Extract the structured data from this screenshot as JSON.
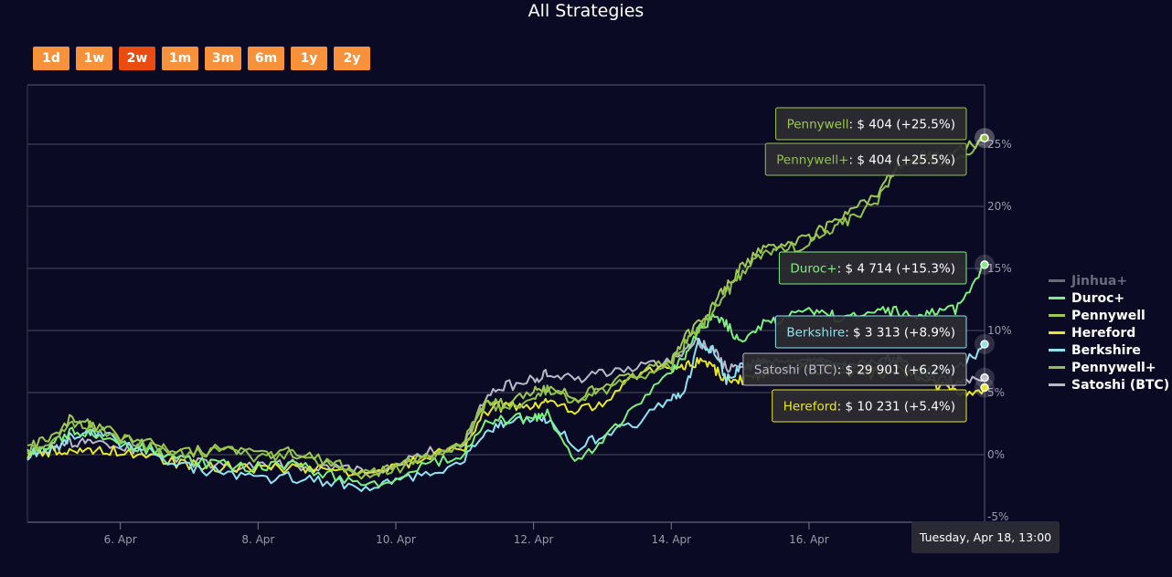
{
  "title": "All Strategies",
  "range_buttons": [
    {
      "label": "1d",
      "active": false
    },
    {
      "label": "1w",
      "active": false
    },
    {
      "label": "2w",
      "active": true
    },
    {
      "label": "1m",
      "active": false
    },
    {
      "label": "3m",
      "active": false
    },
    {
      "label": "6m",
      "active": false
    },
    {
      "label": "1y",
      "active": false
    },
    {
      "label": "2y",
      "active": false
    }
  ],
  "crosshair_label": "Tuesday, Apr 18, 13:00",
  "legend": [
    {
      "name": "Jinhua+",
      "color": "#8a8a8a",
      "hidden": true
    },
    {
      "name": "Duroc+",
      "color": "#7cf07c",
      "hidden": false
    },
    {
      "name": "Pennywell",
      "color": "#9ec84f",
      "hidden": false
    },
    {
      "name": "Hereford",
      "color": "#e6e62a",
      "hidden": false
    },
    {
      "name": "Berkshire",
      "color": "#8ee3f0",
      "hidden": false
    },
    {
      "name": "Pennywell+",
      "color": "#8fc24a",
      "hidden": false
    },
    {
      "name": "Satoshi (BTC)",
      "color": "#b8b8c8",
      "hidden": false
    }
  ],
  "tooltips": [
    {
      "series": "Pennywell",
      "text_name": "Pennywell",
      "text_value": ": $ 404 (+25.5%)",
      "color": "#9ec84f",
      "value": 25.5
    },
    {
      "series": "Pennywell+",
      "text_name": "Pennywell+",
      "text_value": ": $ 404 (+25.5%)",
      "color": "#8fc24a",
      "value": 25.5
    },
    {
      "series": "Duroc+",
      "text_name": "Duroc+",
      "text_value": ": $ 4 714 (+15.3%)",
      "color": "#7cf07c",
      "value": 15.3
    },
    {
      "series": "Berkshire",
      "text_name": "Berkshire",
      "text_value": ": $ 3 313 (+8.9%)",
      "color": "#8ee3f0",
      "value": 8.9
    },
    {
      "series": "Satoshi (BTC)",
      "text_name": "Satoshi (BTC)",
      "text_value": ": $ 29 901 (+6.2%)",
      "color": "#b8b8c8",
      "value": 6.2
    },
    {
      "series": "Hereford",
      "text_name": "Hereford",
      "text_value": ": $ 10 231 (+5.4%)",
      "color": "#e6e62a",
      "value": 5.4
    }
  ],
  "chart_data": {
    "type": "line",
    "title": "All Strategies",
    "x_ticks": [
      "6. Apr",
      "8. Apr",
      "10. Apr",
      "12. Apr",
      "14. Apr",
      "16. Apr"
    ],
    "y_ticks": [
      "-5%",
      "0%",
      "5%",
      "10%",
      "15%",
      "20%",
      "25%"
    ],
    "ylim": [
      -5,
      29
    ],
    "x_tick_values": [
      6,
      8,
      10,
      12,
      14,
      16
    ],
    "xlim": [
      4.65,
      18.55
    ],
    "grid": true,
    "legend_position": "right",
    "series": [
      {
        "name": "Pennywell",
        "color": "#9ec84f",
        "x": [
          4.65,
          5.0,
          5.3,
          5.6,
          6.0,
          6.5,
          7.0,
          7.5,
          8.0,
          8.5,
          9.0,
          9.5,
          10.0,
          10.5,
          11.0,
          11.3,
          11.6,
          12.0,
          12.2,
          12.6,
          13.0,
          13.5,
          14.0,
          14.2,
          14.4,
          14.6,
          14.8,
          15.0,
          15.3,
          15.6,
          16.0,
          16.3,
          16.6,
          17.0,
          17.3,
          17.6,
          17.9,
          18.2,
          18.55
        ],
        "values": [
          0.5,
          1.5,
          3.0,
          2.5,
          1.5,
          0.8,
          0.2,
          0.5,
          0.0,
          0.2,
          -0.5,
          -1.5,
          -1.0,
          0.0,
          1.0,
          4.5,
          4.0,
          5.0,
          5.5,
          4.5,
          5.5,
          6.5,
          7.5,
          9.5,
          10.5,
          12.0,
          13.5,
          15.0,
          16.5,
          17.0,
          17.5,
          18.5,
          19.5,
          21.0,
          23.5,
          24.0,
          24.0,
          24.5,
          25.5
        ]
      },
      {
        "name": "Pennywell+",
        "color": "#8fc24a",
        "x": [
          4.65,
          5.0,
          5.3,
          5.6,
          6.0,
          6.5,
          7.0,
          7.5,
          8.0,
          8.5,
          9.0,
          9.5,
          10.0,
          10.5,
          11.0,
          11.3,
          11.6,
          12.0,
          12.2,
          12.6,
          13.0,
          13.5,
          14.0,
          14.2,
          14.4,
          14.6,
          14.8,
          15.0,
          15.3,
          15.6,
          16.0,
          16.3,
          16.6,
          17.0,
          17.3,
          17.6,
          17.9,
          18.2,
          18.55
        ],
        "values": [
          0.3,
          1.3,
          2.7,
          2.3,
          1.3,
          0.6,
          0.0,
          0.3,
          -0.2,
          0.0,
          -0.7,
          -1.7,
          -1.2,
          -0.2,
          0.8,
          4.2,
          3.7,
          4.7,
          5.2,
          4.2,
          5.2,
          6.2,
          7.2,
          9.0,
          10.0,
          11.5,
          13.0,
          14.5,
          16.0,
          16.5,
          17.0,
          18.0,
          19.0,
          20.5,
          23.0,
          23.5,
          23.5,
          24.0,
          25.5
        ]
      },
      {
        "name": "Duroc+",
        "color": "#7cf07c",
        "x": [
          4.65,
          5.0,
          5.3,
          5.6,
          6.0,
          6.5,
          7.0,
          7.5,
          8.0,
          8.5,
          9.0,
          9.5,
          10.0,
          10.5,
          11.0,
          11.3,
          11.6,
          12.0,
          12.2,
          12.6,
          13.0,
          13.5,
          14.0,
          14.2,
          14.4,
          14.6,
          14.8,
          15.0,
          15.3,
          15.6,
          16.0,
          16.3,
          16.6,
          17.0,
          17.3,
          17.6,
          17.9,
          18.2,
          18.55
        ],
        "values": [
          0.2,
          0.8,
          2.0,
          1.8,
          1.0,
          0.3,
          -0.5,
          -0.8,
          -1.0,
          -0.8,
          -1.5,
          -2.5,
          -2.0,
          -0.8,
          0.0,
          2.5,
          2.8,
          3.0,
          3.5,
          -0.5,
          1.0,
          4.0,
          6.5,
          8.0,
          10.0,
          11.0,
          10.5,
          9.0,
          10.5,
          11.0,
          11.5,
          11.2,
          11.0,
          11.5,
          11.5,
          11.0,
          11.5,
          11.8,
          15.3
        ]
      },
      {
        "name": "Berkshire",
        "color": "#8ee3f0",
        "x": [
          4.65,
          5.0,
          5.3,
          5.6,
          6.0,
          6.5,
          7.0,
          7.5,
          8.0,
          8.5,
          9.0,
          9.5,
          10.0,
          10.5,
          11.0,
          11.3,
          11.6,
          12.0,
          12.2,
          12.6,
          13.0,
          13.5,
          14.0,
          14.2,
          14.4,
          14.6,
          14.8,
          15.0,
          15.3,
          15.6,
          16.0,
          16.3,
          16.6,
          17.0,
          17.3,
          17.6,
          17.9,
          18.2,
          18.55
        ],
        "values": [
          0.0,
          0.5,
          1.5,
          2.0,
          1.0,
          0.0,
          -1.0,
          -1.5,
          -2.0,
          -1.8,
          -2.2,
          -2.5,
          -2.2,
          -1.5,
          -0.5,
          2.0,
          2.5,
          2.8,
          3.0,
          0.5,
          1.5,
          2.5,
          4.5,
          5.0,
          9.0,
          8.5,
          6.0,
          7.0,
          7.5,
          7.0,
          7.5,
          7.2,
          7.0,
          7.5,
          7.8,
          6.5,
          6.8,
          7.0,
          8.9
        ]
      },
      {
        "name": "Hereford",
        "color": "#e6e62a",
        "x": [
          4.65,
          5.0,
          5.3,
          5.6,
          6.0,
          6.5,
          7.0,
          7.5,
          8.0,
          8.5,
          9.0,
          9.5,
          10.0,
          10.5,
          11.0,
          11.3,
          11.6,
          12.0,
          12.2,
          12.6,
          13.0,
          13.5,
          14.0,
          14.2,
          14.4,
          14.6,
          14.8,
          15.0,
          15.3,
          15.6,
          16.0,
          16.3,
          16.6,
          17.0,
          17.3,
          17.6,
          17.9,
          18.2,
          18.55
        ],
        "values": [
          0.0,
          0.3,
          0.5,
          0.5,
          0.3,
          -0.3,
          -0.8,
          -1.0,
          -1.2,
          -1.0,
          -1.2,
          -1.5,
          -1.2,
          0.0,
          0.5,
          3.5,
          4.0,
          4.0,
          4.5,
          3.5,
          4.0,
          6.5,
          7.0,
          7.0,
          7.5,
          7.0,
          6.0,
          6.0,
          6.5,
          6.5,
          7.0,
          6.8,
          6.5,
          6.5,
          6.8,
          6.0,
          5.5,
          5.0,
          5.4
        ]
      },
      {
        "name": "Satoshi (BTC)",
        "color": "#b8b8c8",
        "x": [
          4.65,
          5.0,
          5.3,
          5.6,
          6.0,
          6.5,
          7.0,
          7.5,
          8.0,
          8.5,
          9.0,
          9.5,
          10.0,
          10.5,
          11.0,
          11.3,
          11.6,
          12.0,
          12.2,
          12.6,
          13.0,
          13.5,
          14.0,
          14.2,
          14.4,
          14.6,
          14.8,
          15.0,
          15.3,
          15.6,
          16.0,
          16.3,
          16.6,
          17.0,
          17.3,
          17.6,
          17.9,
          18.2,
          18.55
        ],
        "values": [
          0.2,
          0.6,
          1.0,
          1.2,
          0.8,
          0.0,
          -0.5,
          -0.8,
          -1.0,
          -0.8,
          -1.0,
          -1.3,
          -1.0,
          0.2,
          0.8,
          4.5,
          5.5,
          6.0,
          6.5,
          6.0,
          6.5,
          7.0,
          7.5,
          8.5,
          9.0,
          8.5,
          7.0,
          7.0,
          7.5,
          7.2,
          7.5,
          7.3,
          7.0,
          7.2,
          7.5,
          6.5,
          6.0,
          5.8,
          6.2
        ]
      }
    ]
  }
}
